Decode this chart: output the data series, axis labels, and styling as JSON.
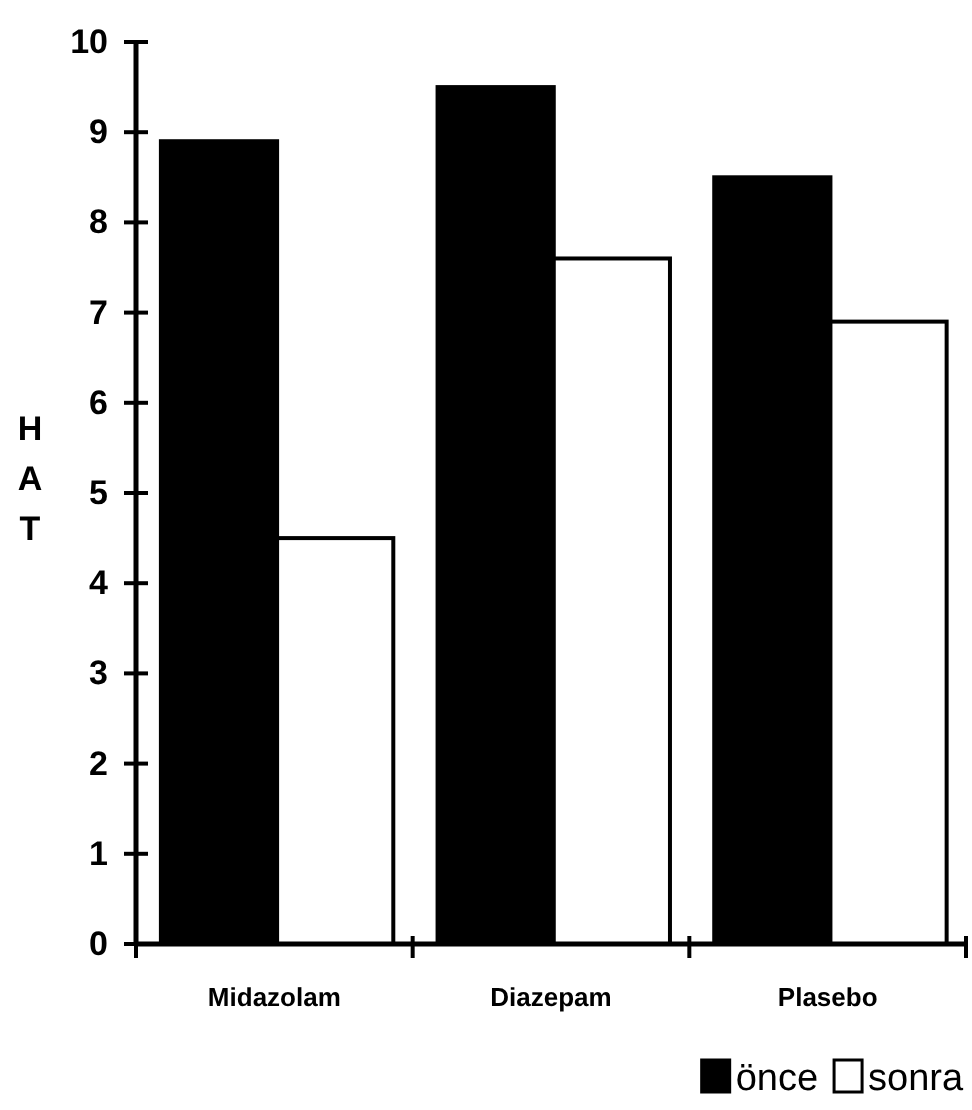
{
  "chart_data": {
    "type": "bar",
    "ylabel": "HAT",
    "categories": [
      "Midazolam",
      "Diazepam",
      "Plasebo"
    ],
    "series": [
      {
        "name": "önce",
        "color": "#000000",
        "values": [
          8.9,
          9.5,
          8.5
        ]
      },
      {
        "name": "sonra",
        "color": "#ffffff",
        "values": [
          4.5,
          7.6,
          6.9
        ]
      }
    ],
    "ylim": [
      0,
      10
    ],
    "yticks": [
      0,
      1,
      2,
      3,
      4,
      5,
      6,
      7,
      8,
      9,
      10
    ],
    "legend": "bottom right"
  }
}
